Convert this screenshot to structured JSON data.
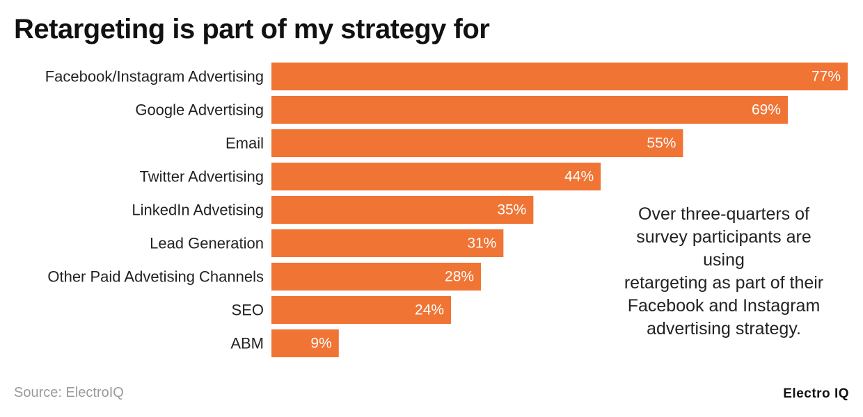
{
  "title": "Retargeting is part of my strategy for",
  "chart_data": {
    "type": "bar",
    "orientation": "horizontal",
    "categories": [
      "Facebook/Instagram Advertising",
      "Google Advertising",
      "Email",
      "Twitter Advertising",
      "LinkedIn Advetising",
      "Lead Generation",
      "Other Paid Advetising Channels",
      "SEO",
      "ABM"
    ],
    "values": [
      77,
      69,
      55,
      44,
      35,
      31,
      28,
      24,
      9
    ],
    "value_labels": [
      "77%",
      "69%",
      "55%",
      "44%",
      "35%",
      "31%",
      "28%",
      "24%",
      "9%"
    ],
    "unit": "%",
    "xlim": [
      0,
      77
    ],
    "grid": false,
    "legend": "none",
    "bar_color": "#f07434"
  },
  "annotation": [
    "Over three-quarters of",
    "survey participants are",
    "using",
    "retargeting as part of their",
    "Facebook and Instagram",
    "advertising strategy."
  ],
  "source": "Source: ElectroIQ",
  "brand": "Electro IQ"
}
